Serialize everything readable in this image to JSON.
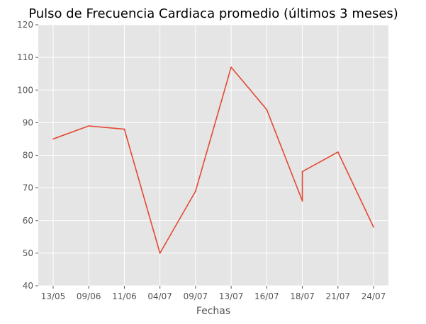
{
  "chart_data": {
    "type": "line",
    "title": "Pulso de Frecuencia Cardiaca promedio (últimos 3 meses)",
    "xlabel": "Fechas",
    "ylabel": "",
    "categories": [
      "13/05",
      "09/06",
      "11/06",
      "04/07",
      "09/07",
      "13/07",
      "16/07",
      "18/07",
      "21/07",
      "24/07"
    ],
    "ylim": [
      40,
      120
    ],
    "yticks": [
      40,
      50,
      60,
      70,
      80,
      90,
      100,
      110,
      120
    ],
    "grid": true,
    "series": [
      {
        "color": "#E24A33",
        "points": [
          {
            "x": "13/05",
            "y": 85
          },
          {
            "x": "09/06",
            "y": 89
          },
          {
            "x": "11/06",
            "y": 88
          },
          {
            "x": "04/07",
            "y": 50
          },
          {
            "x": "09/07",
            "y": 69
          },
          {
            "x": "13/07",
            "y": 107
          },
          {
            "x": "16/07",
            "y": 94
          },
          {
            "x": "18/07",
            "y": 66
          },
          {
            "x": "18/07",
            "y": 75
          },
          {
            "x": "21/07",
            "y": 81
          },
          {
            "x": "24/07",
            "y": 58
          }
        ]
      }
    ],
    "colors": {
      "plot_background": "#E5E5E5",
      "grid": "#FFFFFF",
      "tick_text": "#555555",
      "title_text": "#000000"
    }
  }
}
